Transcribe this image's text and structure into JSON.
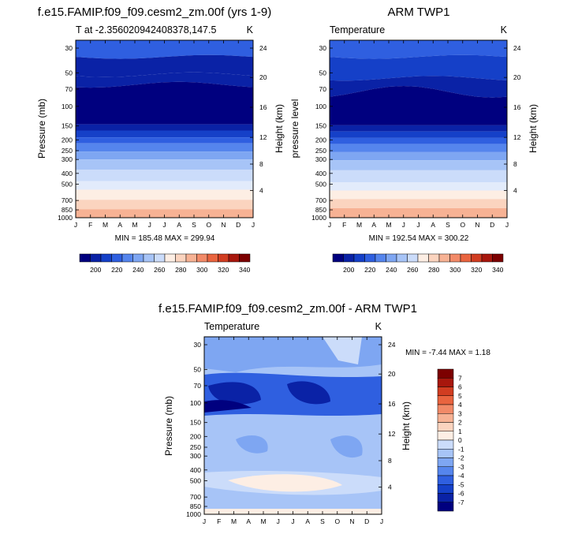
{
  "chart_data": [
    {
      "type": "contour",
      "title": "f.e15.FAMIP.f09_f09.cesm2_zm.00f (yrs 1-9)",
      "subtitle_left": "T at -2.356020942408378,147.5",
      "subtitle_right": "K",
      "ylabel": "Pressure (mb)",
      "ylabel_right": "Height (km)",
      "x_ticks": [
        "J",
        "F",
        "M",
        "A",
        "M",
        "J",
        "J",
        "A",
        "S",
        "O",
        "N",
        "D",
        "J"
      ],
      "y_ticks": [
        "30",
        "50",
        "70",
        "100",
        "150",
        "200",
        "250",
        "300",
        "400",
        "500",
        "700",
        "850",
        "1000"
      ],
      "y_right_ticks": [
        "24",
        "20",
        "16",
        "12",
        "8",
        "4"
      ],
      "min": 185.48,
      "max": 299.94,
      "minmax_text": "MIN = 185.48 MAX = 299.94",
      "colorbar_labels": [
        "200",
        "220",
        "240",
        "260",
        "280",
        "300",
        "320",
        "340"
      ]
    },
    {
      "type": "contour",
      "title": "ARM TWP1",
      "subtitle_left": "Temperature",
      "subtitle_right": "K",
      "ylabel": "pressure level",
      "ylabel_right": "Height (km)",
      "x_ticks": [
        "J",
        "F",
        "M",
        "A",
        "M",
        "J",
        "J",
        "A",
        "S",
        "O",
        "N",
        "D",
        "J"
      ],
      "y_ticks": [
        "30",
        "50",
        "70",
        "100",
        "150",
        "200",
        "250",
        "300",
        "400",
        "500",
        "700",
        "850",
        "1000"
      ],
      "y_right_ticks": [
        "24",
        "20",
        "16",
        "12",
        "8",
        "4"
      ],
      "min": 192.54,
      "max": 300.22,
      "minmax_text": "MIN = 192.54 MAX = 300.22",
      "colorbar_labels": [
        "200",
        "220",
        "240",
        "260",
        "280",
        "300",
        "320",
        "340"
      ]
    },
    {
      "type": "contour",
      "title": "f.e15.FAMIP.f09_f09.cesm2_zm.00f - ARM TWP1",
      "subtitle_left": "Temperature",
      "subtitle_right": "K",
      "ylabel": "Pressure (mb)",
      "ylabel_right": "Height (km)",
      "x_ticks": [
        "J",
        "F",
        "M",
        "A",
        "M",
        "J",
        "J",
        "A",
        "S",
        "O",
        "N",
        "D",
        "J"
      ],
      "y_ticks": [
        "30",
        "50",
        "70",
        "100",
        "150",
        "200",
        "250",
        "300",
        "400",
        "500",
        "700",
        "850",
        "1000"
      ],
      "y_right_ticks": [
        "24",
        "20",
        "16",
        "12",
        "8",
        "4"
      ],
      "min": -7.44,
      "max": 1.18,
      "minmax_text": "MIN = -7.44 MAX = 1.18",
      "colorbar_labels": [
        "7",
        "6",
        "5",
        "4",
        "3",
        "2",
        "1",
        "0",
        "-1",
        "-2",
        "-3",
        "-4",
        "-5",
        "-6",
        "-7"
      ]
    }
  ],
  "colors": {
    "temp_scale": [
      "#00007f",
      "#0a22a6",
      "#1540c8",
      "#2f5fe0",
      "#5585ed",
      "#7ea6f2",
      "#a7c4f7",
      "#cbdcfa",
      "#fdeee4",
      "#fbd4bf",
      "#f7b294",
      "#f28a68",
      "#e9643f",
      "#d13d21",
      "#a8170d",
      "#7c0000"
    ],
    "diff_scale": [
      "#7c0000",
      "#a8170d",
      "#d13d21",
      "#e9643f",
      "#f28a68",
      "#f7b294",
      "#fbd4bf",
      "#fdeee4",
      "#cbdcfa",
      "#a7c4f7",
      "#7ea6f2",
      "#5585ed",
      "#2f5fe0",
      "#1540c8",
      "#0a22a6",
      "#00007f"
    ]
  }
}
